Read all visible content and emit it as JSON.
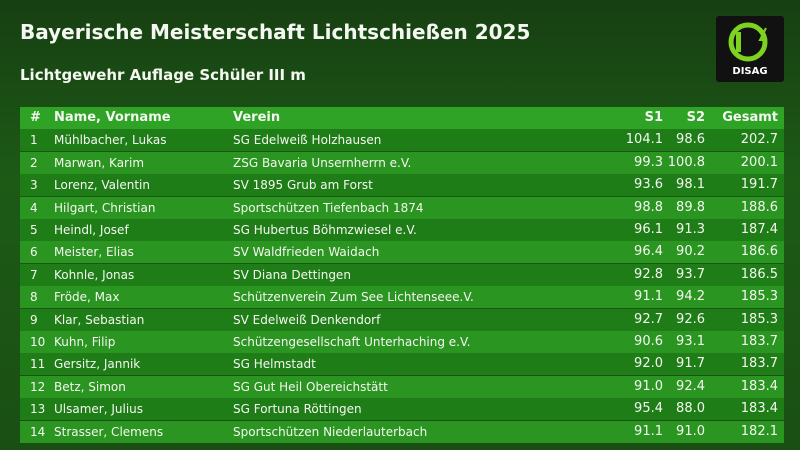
{
  "header": {
    "title": "Bayerische Meisterschaft Lichtschießen 2025",
    "subtitle": "Lichtgewehr Auflage Schüler III m",
    "logo": "DISAG"
  },
  "table": {
    "columns": [
      "#",
      "Name, Vorname",
      "Verein",
      "S1",
      "S2",
      "Gesamt"
    ],
    "rows": [
      {
        "rank": "1",
        "name": "Mühlbacher, Lukas",
        "club": "SG Edelweiß Holzhausen",
        "s1": "104.1",
        "s2": "98.6",
        "total": "202.7"
      },
      {
        "rank": "2",
        "name": "Marwan, Karim",
        "club": "ZSG Bavaria Unsernherrn e.V.",
        "s1": "99.3",
        "s2": "100.8",
        "total": "200.1"
      },
      {
        "rank": "3",
        "name": "Lorenz, Valentin",
        "club": "SV 1895 Grub am Forst",
        "s1": "93.6",
        "s2": "98.1",
        "total": "191.7"
      },
      {
        "rank": "4",
        "name": "Hilgart, Christian",
        "club": "Sportschützen Tiefenbach 1874",
        "s1": "98.8",
        "s2": "89.8",
        "total": "188.6"
      },
      {
        "rank": "5",
        "name": "Heindl, Josef",
        "club": "SG Hubertus Böhmzwiesel e.V.",
        "s1": "96.1",
        "s2": "91.3",
        "total": "187.4"
      },
      {
        "rank": "6",
        "name": "Meister, Elias",
        "club": "SV Waldfrieden Waidach",
        "s1": "96.4",
        "s2": "90.2",
        "total": "186.6"
      },
      {
        "rank": "7",
        "name": "Kohnle, Jonas",
        "club": "SV Diana Dettingen",
        "s1": "92.8",
        "s2": "93.7",
        "total": "186.5"
      },
      {
        "rank": "8",
        "name": "Fröde, Max",
        "club": "Schützenverein Zum See Lichtenseee.V.",
        "s1": "91.1",
        "s2": "94.2",
        "total": "185.3"
      },
      {
        "rank": "9",
        "name": "Klar, Sebastian",
        "club": "SV Edelweiß Denkendorf",
        "s1": "92.7",
        "s2": "92.6",
        "total": "185.3"
      },
      {
        "rank": "10",
        "name": "Kuhn, Filip",
        "club": "Schützengesellschaft Unterhaching e.V.",
        "s1": "90.6",
        "s2": "93.1",
        "total": "183.7"
      },
      {
        "rank": "11",
        "name": "Gersitz, Jannik",
        "club": "SG Helmstadt",
        "s1": "92.0",
        "s2": "91.7",
        "total": "183.7"
      },
      {
        "rank": "12",
        "name": "Betz, Simon",
        "club": "SG Gut Heil Obereichstätt",
        "s1": "91.0",
        "s2": "92.4",
        "total": "183.4"
      },
      {
        "rank": "13",
        "name": "Ulsamer, Julius",
        "club": "SG Fortuna Röttingen",
        "s1": "95.4",
        "s2": "88.0",
        "total": "183.4"
      },
      {
        "rank": "14",
        "name": "Strasser, Clemens",
        "club": "Sportschützen Niederlauterbach",
        "s1": "91.1",
        "s2": "91.0",
        "total": "182.1"
      }
    ]
  }
}
